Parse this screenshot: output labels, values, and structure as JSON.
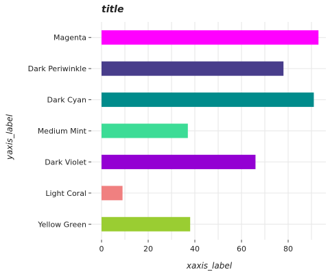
{
  "chart_data": {
    "type": "bar",
    "orientation": "horizontal",
    "title": "title",
    "xlabel": "xaxis_label",
    "ylabel": "yaxis_label",
    "categories": [
      "Yellow Green",
      "Light Coral",
      "Dark Violet",
      "Medium Mint",
      "Dark Cyan",
      "Dark Periwinkle",
      "Magenta"
    ],
    "values": [
      38,
      9,
      66,
      37,
      91,
      78,
      93
    ],
    "colors": [
      "#9acd32",
      "#f08080",
      "#9400d3",
      "#3cdc96",
      "#008b8b",
      "#483d8b",
      "#ff00ff"
    ],
    "xlim": [
      0,
      95
    ],
    "xticks": [
      0,
      20,
      40,
      60,
      80
    ],
    "grid": true
  }
}
